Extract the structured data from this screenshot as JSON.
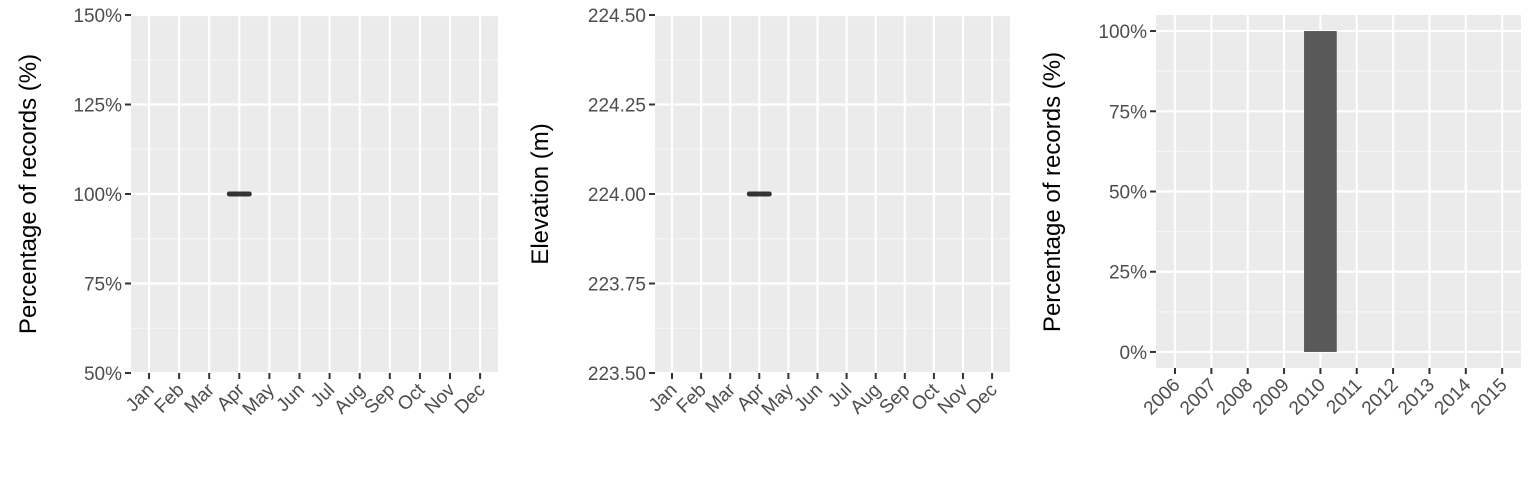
{
  "chart_data": [
    {
      "type": "line",
      "title": "",
      "xlabel": "",
      "ylabel": "Percentage of records (%)",
      "categories": [
        "Jan",
        "Feb",
        "Mar",
        "Apr",
        "May",
        "Jun",
        "Jul",
        "Aug",
        "Sep",
        "Oct",
        "Nov",
        "Dec"
      ],
      "y_ticks": [
        "150%",
        "125%",
        "100%",
        "75%",
        "50%"
      ],
      "ylim": [
        50,
        150
      ],
      "grid": true,
      "series": [
        {
          "segments": [
            {
              "category": "Apr",
              "value": 100
            }
          ]
        }
      ]
    },
    {
      "type": "line",
      "title": "",
      "xlabel": "",
      "ylabel": "Elevation (m)",
      "categories": [
        "Jan",
        "Feb",
        "Mar",
        "Apr",
        "May",
        "Jun",
        "Jul",
        "Aug",
        "Sep",
        "Oct",
        "Nov",
        "Dec"
      ],
      "y_ticks": [
        "224.50",
        "224.25",
        "224.00",
        "223.75",
        "223.50"
      ],
      "ylim": [
        223.5,
        224.5
      ],
      "grid": true,
      "series": [
        {
          "segments": [
            {
              "category": "Apr",
              "value": 224.0
            }
          ]
        }
      ]
    },
    {
      "type": "bar",
      "title": "",
      "xlabel": "",
      "ylabel": "Percentage of records (%)",
      "categories": [
        "2006",
        "2007",
        "2008",
        "2009",
        "2010",
        "2011",
        "2012",
        "2013",
        "2014",
        "2015"
      ],
      "values": [
        0,
        0,
        0,
        0,
        100,
        0,
        0,
        0,
        0,
        0
      ],
      "y_ticks": [
        "100%",
        "75%",
        "50%",
        "25%",
        "0%"
      ],
      "ylim": [
        -5,
        105
      ],
      "grid": true
    }
  ],
  "colors": {
    "panel": "#ebebeb",
    "grid_major": "#ffffff",
    "grid_minor": "#f5f5f5",
    "mark": "#595959",
    "segment": "#333333",
    "tick_text": "#4d4d4d"
  }
}
